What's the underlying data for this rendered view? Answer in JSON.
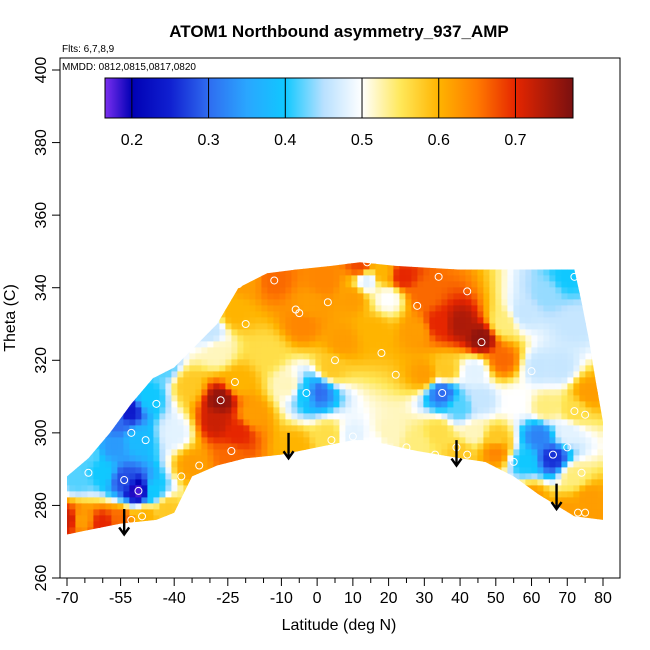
{
  "chart_data": {
    "type": "heatmap",
    "title": "ATOM1 Northbound asymmetry_937_AMP",
    "annotations": [
      "Flts: 6,7,8,9",
      "MMDD: 0812,0815,0817,0820"
    ],
    "xlabel": "Latitude (deg N)",
    "ylabel": "Theta (C)",
    "xlim": [
      -70,
      80
    ],
    "ylim": [
      260,
      400
    ],
    "x_ticks_major": [
      -70,
      -55,
      -40,
      -25,
      -10,
      0,
      10,
      20,
      30,
      40,
      50,
      60,
      70,
      80
    ],
    "x_ticks_minor": [
      -65,
      -60,
      -50,
      -45,
      -35,
      -30,
      -20,
      -15,
      -5,
      5,
      15,
      25,
      35,
      45,
      55,
      65,
      75
    ],
    "y_ticks": [
      260,
      280,
      300,
      320,
      340,
      360,
      380,
      400
    ],
    "colorbar": {
      "min": 0.165,
      "max": 0.775,
      "ticks": [
        0.2,
        0.3,
        0.4,
        0.5,
        0.6,
        0.7
      ],
      "tick_labels": [
        "0.2",
        "0.3",
        "0.4",
        "0.5",
        "0.6",
        "0.7"
      ],
      "stops": [
        [
          0.165,
          "#7b2ff0"
        ],
        [
          0.2,
          "#0000b4"
        ],
        [
          0.25,
          "#1020d0"
        ],
        [
          0.3,
          "#2f6cf0"
        ],
        [
          0.35,
          "#2aa6ff"
        ],
        [
          0.4,
          "#10c8ff"
        ],
        [
          0.45,
          "#b8e0ff"
        ],
        [
          0.5,
          "#ffffff"
        ],
        [
          0.55,
          "#ffe85a"
        ],
        [
          0.6,
          "#ffb400"
        ],
        [
          0.65,
          "#ff7a00"
        ],
        [
          0.7,
          "#e62600"
        ],
        [
          0.775,
          "#7a1010"
        ]
      ]
    },
    "domain_polygon": [
      [
        -70,
        272
      ],
      [
        -70,
        288
      ],
      [
        -64,
        293
      ],
      [
        -58,
        300
      ],
      [
        -52,
        308
      ],
      [
        -46,
        315
      ],
      [
        -40,
        318
      ],
      [
        -34,
        324
      ],
      [
        -28,
        330
      ],
      [
        -22,
        340
      ],
      [
        -14,
        344
      ],
      [
        -6,
        345
      ],
      [
        4,
        346
      ],
      [
        12,
        347
      ],
      [
        22,
        346
      ],
      [
        40,
        345
      ],
      [
        60,
        345
      ],
      [
        72,
        345
      ],
      [
        74,
        336
      ],
      [
        76,
        326
      ],
      [
        78,
        314
      ],
      [
        80,
        303
      ],
      [
        80,
        276
      ],
      [
        72,
        277
      ],
      [
        62,
        283
      ],
      [
        55,
        288
      ],
      [
        47,
        292
      ],
      [
        40,
        293
      ],
      [
        28,
        295
      ],
      [
        14,
        298
      ],
      [
        10,
        298
      ],
      [
        0,
        296
      ],
      [
        -10,
        294
      ],
      [
        -20,
        293
      ],
      [
        -28,
        291
      ],
      [
        -35,
        288
      ],
      [
        -40,
        278
      ],
      [
        -45,
        276
      ],
      [
        -55,
        275
      ],
      [
        -65,
        273
      ]
    ],
    "field_points": [
      [
        -70,
        276,
        0.72
      ],
      [
        -66,
        276,
        0.62
      ],
      [
        -60,
        275,
        0.7
      ],
      [
        -55,
        276,
        0.66
      ],
      [
        -48,
        277,
        0.6
      ],
      [
        -42,
        279,
        0.58
      ],
      [
        -67,
        287,
        0.42
      ],
      [
        -60,
        289,
        0.4
      ],
      [
        -54,
        287,
        0.28
      ],
      [
        -50,
        284,
        0.18
      ],
      [
        -46,
        284,
        0.4
      ],
      [
        -64,
        294,
        0.42
      ],
      [
        -57,
        296,
        0.34
      ],
      [
        -50,
        298,
        0.38
      ],
      [
        -56,
        303,
        0.3
      ],
      [
        -53,
        306,
        0.24
      ],
      [
        -47,
        310,
        0.4
      ],
      [
        -43,
        318,
        0.42
      ],
      [
        -36,
        313,
        0.58
      ],
      [
        -40,
        300,
        0.48
      ],
      [
        -35,
        291,
        0.62
      ],
      [
        -28,
        303,
        0.72
      ],
      [
        -27,
        309,
        0.76
      ],
      [
        -22,
        300,
        0.7
      ],
      [
        -24,
        293,
        0.66
      ],
      [
        -18,
        305,
        0.62
      ],
      [
        -22,
        314,
        0.6
      ],
      [
        -28,
        322,
        0.52
      ],
      [
        -30,
        328,
        0.46
      ],
      [
        -23,
        333,
        0.6
      ],
      [
        -20,
        342,
        0.62
      ],
      [
        -12,
        342,
        0.66
      ],
      [
        -14,
        322,
        0.56
      ],
      [
        -8,
        313,
        0.52
      ],
      [
        -3,
        311,
        0.4
      ],
      [
        0,
        311,
        0.3
      ],
      [
        4,
        318,
        0.58
      ],
      [
        7,
        325,
        0.62
      ],
      [
        -4,
        330,
        0.64
      ],
      [
        -2,
        335,
        0.62
      ],
      [
        2,
        342,
        0.64
      ],
      [
        10,
        337,
        0.62
      ],
      [
        14,
        342,
        0.48
      ],
      [
        12,
        346,
        0.68
      ],
      [
        18,
        344,
        0.6
      ],
      [
        20,
        337,
        0.5
      ],
      [
        16,
        328,
        0.6
      ],
      [
        24,
        343,
        0.7
      ],
      [
        30,
        338,
        0.66
      ],
      [
        28,
        328,
        0.62
      ],
      [
        34,
        330,
        0.7
      ],
      [
        40,
        330,
        0.74
      ],
      [
        46,
        326,
        0.76
      ],
      [
        52,
        320,
        0.66
      ],
      [
        36,
        317,
        0.58
      ],
      [
        30,
        316,
        0.62
      ],
      [
        35,
        311,
        0.3
      ],
      [
        40,
        307,
        0.42
      ],
      [
        46,
        309,
        0.46
      ],
      [
        44,
        317,
        0.48
      ],
      [
        52,
        330,
        0.54
      ],
      [
        58,
        333,
        0.46
      ],
      [
        64,
        338,
        0.44
      ],
      [
        70,
        343,
        0.4
      ],
      [
        72,
        330,
        0.46
      ],
      [
        68,
        318,
        0.46
      ],
      [
        62,
        318,
        0.46
      ],
      [
        56,
        309,
        0.5
      ],
      [
        64,
        307,
        0.54
      ],
      [
        72,
        306,
        0.56
      ],
      [
        76,
        311,
        0.62
      ],
      [
        70,
        300,
        0.48
      ],
      [
        62,
        299,
        0.32
      ],
      [
        66,
        293,
        0.26
      ],
      [
        58,
        292,
        0.4
      ],
      [
        50,
        298,
        0.58
      ],
      [
        44,
        300,
        0.52
      ],
      [
        40,
        294,
        0.58
      ],
      [
        28,
        297,
        0.54
      ],
      [
        20,
        300,
        0.52
      ],
      [
        16,
        297,
        0.5
      ],
      [
        10,
        299,
        0.48
      ],
      [
        3,
        299,
        0.56
      ],
      [
        -6,
        296,
        0.6
      ],
      [
        72,
        288,
        0.54
      ],
      [
        76,
        282,
        0.62
      ],
      [
        78,
        277,
        0.62
      ],
      [
        70,
        278,
        0.62
      ],
      [
        60,
        282,
        0.62
      ],
      [
        50,
        295,
        0.64
      ],
      [
        34,
        300,
        0.56
      ]
    ],
    "flight_points": [
      [
        -52,
        276
      ],
      [
        -49,
        277
      ],
      [
        -54,
        287
      ],
      [
        -50,
        284
      ],
      [
        -48,
        298
      ],
      [
        -52,
        300
      ],
      [
        -64,
        289
      ],
      [
        -45,
        308
      ],
      [
        -38,
        288
      ],
      [
        -33,
        291
      ],
      [
        -27,
        309
      ],
      [
        -24,
        295
      ],
      [
        -23,
        314
      ],
      [
        -20,
        330
      ],
      [
        -22,
        341
      ],
      [
        -12,
        342
      ],
      [
        -6,
        334
      ],
      [
        -3,
        311
      ],
      [
        -5,
        333
      ],
      [
        3,
        336
      ],
      [
        5,
        320
      ],
      [
        4,
        298
      ],
      [
        10,
        299
      ],
      [
        14,
        347
      ],
      [
        18,
        322
      ],
      [
        22,
        316
      ],
      [
        25,
        296
      ],
      [
        28,
        335
      ],
      [
        33,
        294
      ],
      [
        34,
        343
      ],
      [
        35,
        311
      ],
      [
        39,
        296
      ],
      [
        42,
        294
      ],
      [
        46,
        325
      ],
      [
        42,
        339
      ],
      [
        55,
        292
      ],
      [
        60,
        317
      ],
      [
        66,
        294
      ],
      [
        72,
        306
      ],
      [
        70,
        296
      ],
      [
        74,
        289
      ],
      [
        73,
        278
      ],
      [
        75,
        278
      ],
      [
        72,
        343
      ],
      [
        75,
        305
      ]
    ],
    "arrows": [
      {
        "lat": -54,
        "theta_from": 279,
        "theta_to": 272
      },
      {
        "lat": -8,
        "theta_from": 300,
        "theta_to": 293
      },
      {
        "lat": 39,
        "theta_from": 298,
        "theta_to": 291
      },
      {
        "lat": 67,
        "theta_from": 286,
        "theta_to": 279
      }
    ]
  }
}
